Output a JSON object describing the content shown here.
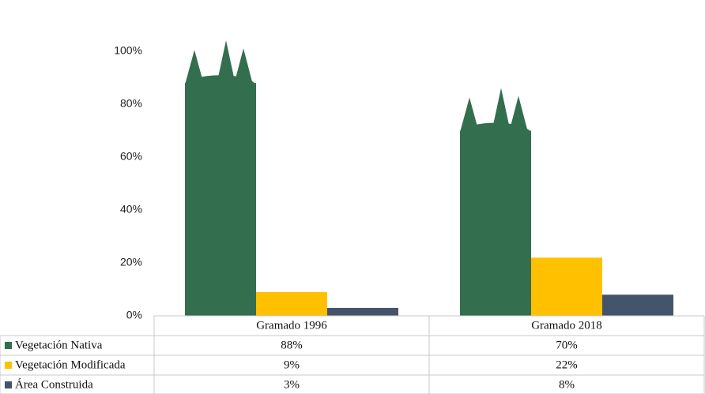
{
  "chart_data": {
    "type": "bar",
    "categories": [
      "Gramado 1996",
      "Gramado 2018"
    ],
    "series": [
      {
        "name": "Vegetación Nativa",
        "color": "#336e4e",
        "values": [
          88,
          70
        ],
        "value_labels": [
          "88%",
          "70%"
        ]
      },
      {
        "name": "Vegetación Modificada",
        "color": "#ffc000",
        "values": [
          9,
          22
        ],
        "value_labels": [
          "9%",
          "22%"
        ]
      },
      {
        "name": "Área Construida",
        "color": "#44546a",
        "values": [
          3,
          8
        ],
        "value_labels": [
          "3%",
          "8%"
        ]
      }
    ],
    "ylim": [
      0,
      100
    ],
    "yticks": [
      {
        "value": 0,
        "label": "0%"
      },
      {
        "value": 20,
        "label": "20%"
      },
      {
        "value": 40,
        "label": "40%"
      },
      {
        "value": 60,
        "label": "60%"
      },
      {
        "value": 80,
        "label": "80%"
      },
      {
        "value": 100,
        "label": "100%"
      }
    ]
  }
}
